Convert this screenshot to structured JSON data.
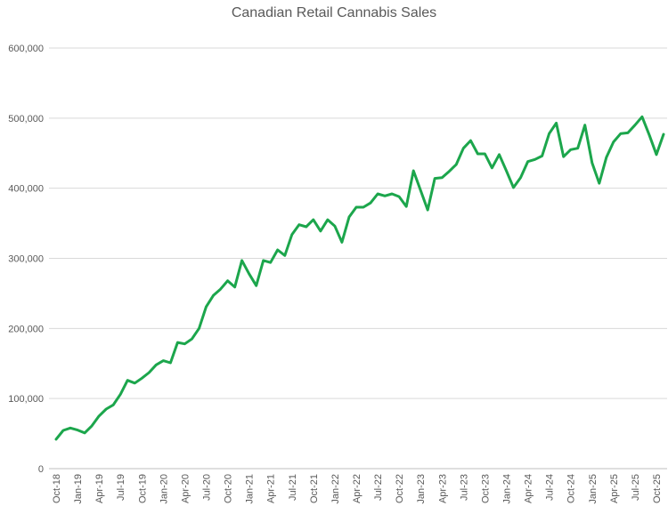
{
  "chart_data": {
    "type": "line",
    "title": "Canadian Retail Cannabis Sales",
    "categories": [
      "Oct-18",
      null,
      null,
      "Jan-19",
      null,
      null,
      "Apr-19",
      null,
      null,
      "Jul-19",
      null,
      null,
      "Oct-19",
      null,
      null,
      "Jan-20",
      null,
      null,
      "Apr-20",
      null,
      null,
      "Jul-20",
      null,
      null,
      "Oct-20",
      null,
      null,
      "Jan-21",
      null,
      null,
      "Apr-21",
      null,
      null,
      "Jul-21",
      null,
      null,
      "Oct-21",
      null,
      null,
      "Jan-22",
      null,
      null,
      "Apr-22",
      null,
      null,
      "Jul-22",
      null,
      null,
      "Oct-22",
      null,
      null,
      "Jan-23",
      null,
      null,
      "Apr-23",
      null,
      null,
      "Jul-23",
      null,
      null,
      "Oct-23",
      null,
      null,
      "Jan-24",
      null,
      null,
      "Apr-24",
      null,
      null,
      "Jul-24",
      null,
      null,
      "Oct-24",
      null,
      null,
      "Jan-25",
      null,
      null,
      "Apr-25",
      null,
      null,
      "Jul-25",
      null,
      null,
      "Oct-25",
      null
    ],
    "values": [
      42000,
      54500,
      58000,
      55000,
      51000,
      61000,
      75000,
      85000,
      91000,
      106000,
      126000,
      122000,
      129000,
      137000,
      148000,
      154000,
      151000,
      180000,
      178000,
      185000,
      200000,
      231000,
      247000,
      256000,
      268000,
      259000,
      297000,
      278000,
      261000,
      297000,
      294000,
      312000,
      304000,
      334000,
      348000,
      345000,
      355000,
      339000,
      355000,
      346000,
      323000,
      359000,
      373000,
      373000,
      379000,
      392000,
      389000,
      392000,
      388000,
      374000,
      425000,
      397000,
      369000,
      414000,
      415000,
      424000,
      434000,
      457000,
      468000,
      449000,
      449000,
      429000,
      448000,
      425000,
      401000,
      415000,
      438000,
      441000,
      446000,
      478000,
      493000,
      445000,
      455000,
      457000,
      490000,
      436000,
      407000,
      444000,
      466000,
      478000,
      479000,
      490000,
      502000,
      476000,
      448000,
      477000
    ],
    "color": "#1ca64c",
    "ylim": [
      0,
      600000
    ],
    "yticks": [
      0,
      {
        "value": 100000,
        "label": "100,000"
      },
      {
        "value": 200000,
        "label": "200,000"
      },
      {
        "value": 300000,
        "label": "300,000"
      },
      {
        "value": 400000,
        "label": "400,000"
      },
      {
        "value": 500000,
        "label": "500,000"
      },
      {
        "value": 600000,
        "label": "600,000"
      }
    ],
    "grid": true
  }
}
